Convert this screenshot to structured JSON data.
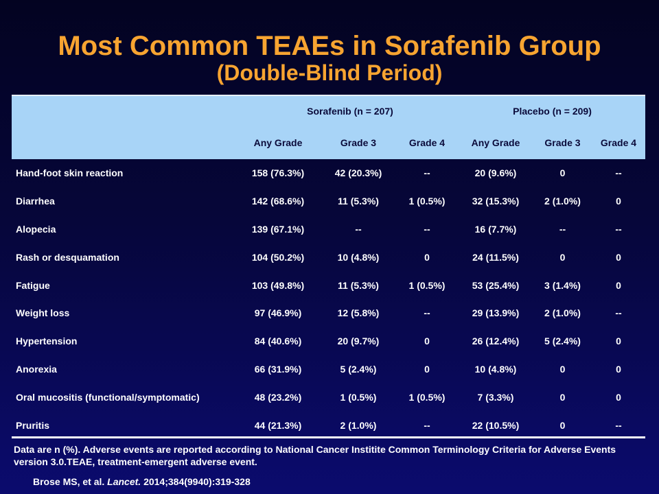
{
  "title": "Most Common TEAEs in Sorafenib Group",
  "subtitle": "(Double-Blind Period)",
  "table": {
    "groups": {
      "sorafenib": "Sorafenib (n = 207)",
      "placebo": "Placebo (n = 209)"
    },
    "columns": [
      "Any Grade",
      "Grade 3",
      "Grade 4",
      "Any Grade",
      "Grade 3",
      "Grade 4"
    ],
    "rows": [
      {
        "name": "Hand-foot skin reaction",
        "cells": [
          "158 (76.3%)",
          "42 (20.3%)",
          "--",
          "20 (9.6%)",
          "0",
          "--"
        ]
      },
      {
        "name": "Diarrhea",
        "cells": [
          "142 (68.6%)",
          "11 (5.3%)",
          "1 (0.5%)",
          "32 (15.3%)",
          "2 (1.0%)",
          "0"
        ]
      },
      {
        "name": "Alopecia",
        "cells": [
          "139 (67.1%)",
          "--",
          "--",
          "16 (7.7%)",
          "--",
          "--"
        ]
      },
      {
        "name": "Rash or desquamation",
        "cells": [
          "104 (50.2%)",
          "10 (4.8%)",
          "0",
          "24 (11.5%)",
          "0",
          "0"
        ]
      },
      {
        "name": "Fatigue",
        "cells": [
          "103 (49.8%)",
          "11 (5.3%)",
          "1 (0.5%)",
          "53 (25.4%)",
          "3 (1.4%)",
          "0"
        ]
      },
      {
        "name": "Weight loss",
        "cells": [
          "97 (46.9%)",
          "12 (5.8%)",
          "--",
          "29 (13.9%)",
          "2 (1.0%)",
          "--"
        ]
      },
      {
        "name": "Hypertension",
        "cells": [
          "84 (40.6%)",
          "20 (9.7%)",
          "0",
          "26 (12.4%)",
          "5 (2.4%)",
          "0"
        ]
      },
      {
        "name": "Anorexia",
        "cells": [
          "66 (31.9%)",
          "5 (2.4%)",
          "0",
          "10 (4.8%)",
          "0",
          "0"
        ]
      },
      {
        "name": "Oral mucositis (functional/symptomatic)",
        "cells": [
          "48 (23.2%)",
          "1 (0.5%)",
          "1 (0.5%)",
          "7 (3.3%)",
          "0",
          "0"
        ]
      },
      {
        "name": "Pruritis",
        "cells": [
          "44 (21.3%)",
          "2 (1.0%)",
          "--",
          "22 (10.5%)",
          "0",
          "--"
        ]
      }
    ]
  },
  "footnote": "Data are n (%). Adverse events are reported according to National Cancer Institite Common Terminology Criteria for Adverse Events version 3.0.TEAE, treatment-emergent adverse event.",
  "citation": {
    "authors": "Brose MS, et al.",
    "journal": "Lancet.",
    "details": "2014;384(9940):319-328"
  }
}
